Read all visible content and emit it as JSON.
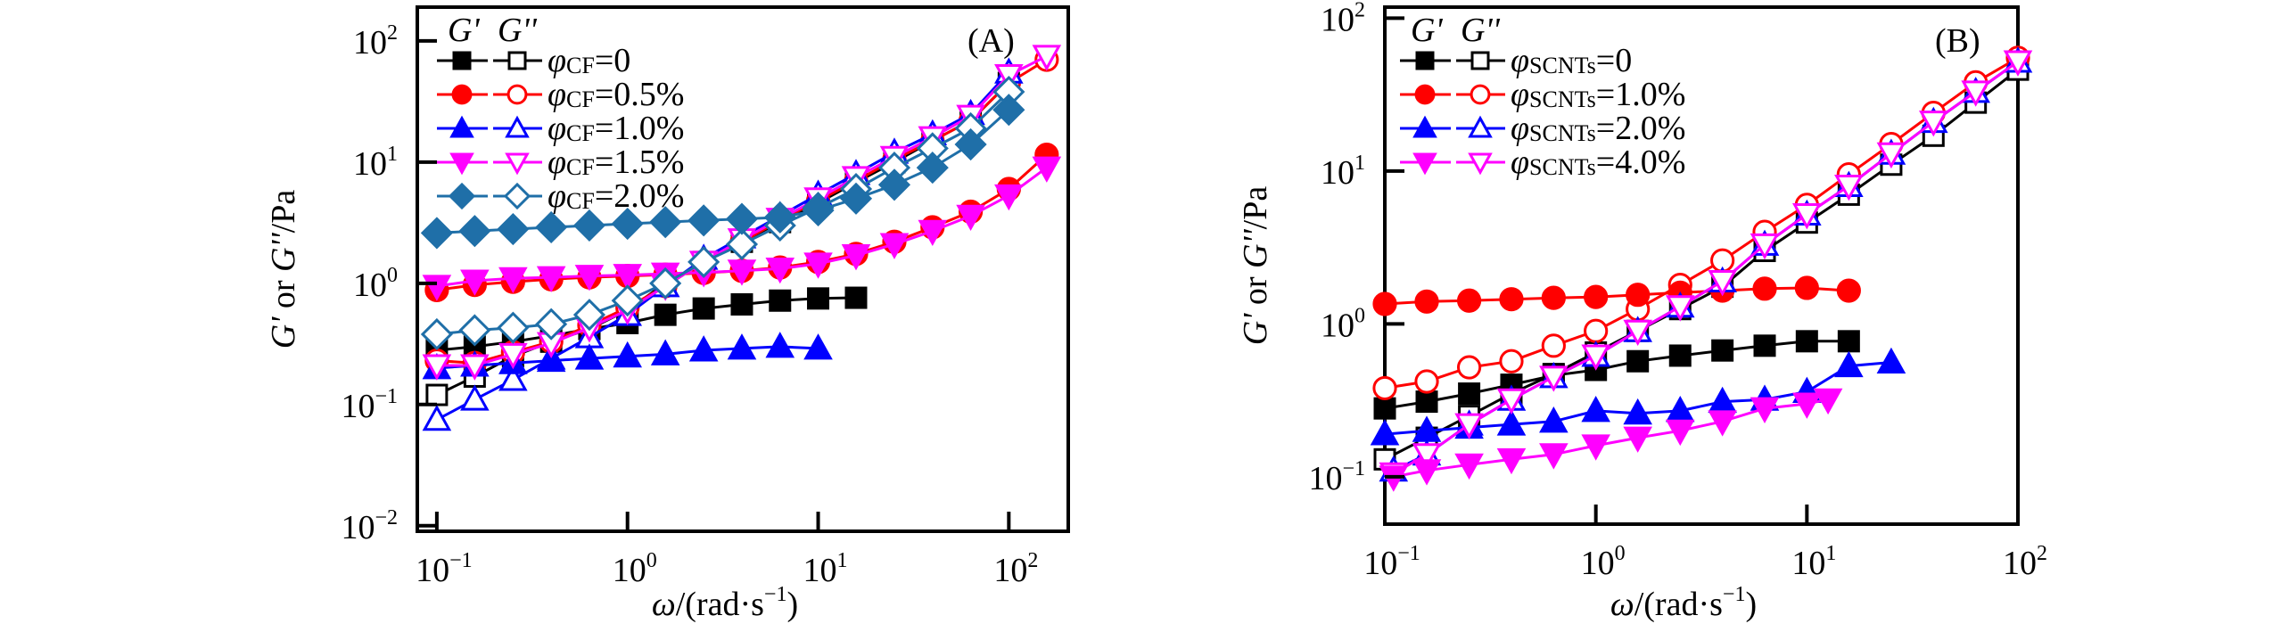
{
  "chart_data": [
    {
      "type": "line",
      "panel_label": "(A)",
      "title": "",
      "xscale": "log",
      "yscale": "log",
      "xlabel": "ω/(rad·s⁻¹)",
      "ylabel": "G' or G''/Pa",
      "xlabel_parts": {
        "main": "ω/(rad·s",
        "sup": "−1",
        "end": ")"
      },
      "ylabel_parts": {
        "g1": "G'",
        "or": " or ",
        "g2": "G''",
        "unit": "/Pa"
      },
      "xlim": [
        0.079,
        205
      ],
      "ylim": [
        0.009,
        190
      ],
      "xticks": [
        {
          "base": "10",
          "exp": "−1",
          "value": 0.1
        },
        {
          "base": "10",
          "exp": "0",
          "value": 1
        },
        {
          "base": "10",
          "exp": "1",
          "value": 10
        },
        {
          "base": "10",
          "exp": "2",
          "value": 100
        }
      ],
      "yticks": [
        {
          "base": "10",
          "exp": "−2",
          "value": 0.01
        },
        {
          "base": "10",
          "exp": "−1",
          "value": 0.1
        },
        {
          "base": "10",
          "exp": "0",
          "value": 1
        },
        {
          "base": "10",
          "exp": "1",
          "value": 10
        },
        {
          "base": "10",
          "exp": "2",
          "value": 100
        }
      ],
      "grid": false,
      "legend": {
        "placement": "top-left",
        "header_gp": "G'",
        "header_gpp": "G''",
        "symbol": "φ",
        "subscript": "CF"
      },
      "series": [
        {
          "name": "φCF=0",
          "label_value": "=0",
          "color": "#000000",
          "marker": "square",
          "gp": {
            "x": [
              0.1,
              0.158,
              0.251,
              0.398,
              0.631,
              1,
              1.58,
              2.51,
              3.98,
              6.31,
              10,
              15.8
            ],
            "y": [
              0.28,
              0.3,
              0.33,
              0.37,
              0.42,
              0.47,
              0.55,
              0.62,
              0.67,
              0.72,
              0.75,
              0.76
            ]
          },
          "gpp": {
            "x": [
              0.1,
              0.158,
              0.251,
              0.398,
              0.631,
              1,
              1.58,
              2.51,
              3.98,
              6.31,
              10,
              15.8,
              25.1,
              39.8,
              63.1,
              100
            ],
            "y": [
              0.12,
              0.17,
              0.25,
              0.33,
              0.42,
              0.6,
              1.0,
              1.5,
              2.2,
              3.2,
              4.6,
              6.8,
              10,
              15,
              22,
              45
            ]
          }
        },
        {
          "name": "φCF=0.5%",
          "label_value": "=0.5%",
          "color": "#ff0000",
          "marker": "circle",
          "gp": {
            "x": [
              0.1,
              0.158,
              0.251,
              0.398,
              0.631,
              1,
              1.58,
              2.51,
              3.98,
              6.31,
              10,
              15.8,
              25.1,
              39.8,
              63.1,
              100,
              158
            ],
            "y": [
              0.88,
              0.97,
              1.03,
              1.08,
              1.12,
              1.15,
              1.18,
              1.22,
              1.27,
              1.35,
              1.5,
              1.75,
              2.2,
              2.9,
              3.9,
              6.0,
              11.5
            ]
          },
          "gpp": {
            "x": [
              0.1,
              0.158,
              0.251,
              0.398,
              0.631,
              1,
              1.58,
              2.51,
              3.98,
              6.31,
              10,
              15.8,
              25.1,
              39.8,
              63.1,
              100,
              158
            ],
            "y": [
              0.23,
              0.22,
              0.27,
              0.33,
              0.45,
              0.63,
              0.95,
              1.5,
              2.2,
              3.3,
              4.8,
              7,
              10.5,
              15,
              22,
              45,
              70
            ]
          }
        },
        {
          "name": "φCF=1.0%",
          "label_value": "=1.0%",
          "color": "#0000ff",
          "marker": "triangle-up",
          "gp": {
            "x": [
              0.1,
              0.158,
              0.251,
              0.398,
              0.631,
              1,
              1.58,
              2.51,
              3.98,
              6.31,
              10
            ],
            "y": [
              0.2,
              0.21,
              0.22,
              0.23,
              0.24,
              0.25,
              0.26,
              0.28,
              0.29,
              0.3,
              0.29
            ]
          },
          "gpp": {
            "x": [
              0.1,
              0.158,
              0.251,
              0.398,
              0.631,
              1,
              1.58,
              2.51,
              3.98,
              6.31,
              10,
              15.8,
              25.1,
              39.8,
              63.1,
              100
            ],
            "y": [
              0.075,
              0.11,
              0.16,
              0.24,
              0.36,
              0.55,
              0.95,
              1.6,
              2.4,
              3.6,
              5.4,
              8,
              12,
              17,
              25,
              55
            ]
          }
        },
        {
          "name": "φCF=1.5%",
          "label_value": "=1.5%",
          "color": "#ff00ff",
          "marker": "triangle-down",
          "gp": {
            "x": [
              0.1,
              0.158,
              0.251,
              0.398,
              0.631,
              1,
              1.58,
              2.51,
              3.98,
              6.31,
              10,
              15.8,
              25.1,
              39.8,
              63.1,
              100,
              158
            ],
            "y": [
              0.95,
              1.05,
              1.1,
              1.12,
              1.15,
              1.17,
              1.2,
              1.23,
              1.27,
              1.32,
              1.45,
              1.7,
              2.1,
              2.7,
              3.6,
              5.3,
              9.0
            ]
          },
          "gpp": {
            "x": [
              0.1,
              0.158,
              0.251,
              0.398,
              0.631,
              1,
              1.58,
              2.51,
              3.98,
              6.31,
              10,
              15.8,
              25.1,
              39.8,
              63.1,
              100,
              158
            ],
            "y": [
              0.21,
              0.21,
              0.26,
              0.32,
              0.43,
              0.6,
              0.95,
              1.5,
              2.3,
              3.4,
              5,
              7.5,
              11,
              16,
              24,
              52,
              75
            ]
          }
        },
        {
          "name": "φCF=2.0%",
          "label_value": "=2.0%",
          "color": "#1f6fa8",
          "marker": "diamond",
          "gp": {
            "x": [
              0.1,
              0.158,
              0.251,
              0.398,
              0.631,
              1,
              1.58,
              2.51,
              3.98,
              6.31,
              10,
              15.8,
              25.1,
              39.8,
              63.1,
              100
            ],
            "y": [
              2.6,
              2.7,
              2.8,
              2.9,
              3.0,
              3.1,
              3.2,
              3.3,
              3.4,
              3.5,
              4.0,
              5.0,
              6.5,
              9,
              14,
              27
            ]
          },
          "gpp": {
            "x": [
              0.1,
              0.158,
              0.251,
              0.398,
              0.631,
              1,
              1.58,
              2.51,
              3.98,
              6.31,
              10,
              15.8,
              25.1,
              39.8,
              63.1,
              100
            ],
            "y": [
              0.38,
              0.41,
              0.43,
              0.46,
              0.55,
              0.72,
              1.0,
              1.5,
              2.1,
              3.0,
              4.2,
              6,
              9,
              13,
              19,
              38
            ]
          }
        }
      ]
    },
    {
      "type": "line",
      "panel_label": "(B)",
      "title": "",
      "xscale": "log",
      "yscale": "log",
      "xlabel": "ω/(rad·s⁻¹)",
      "ylabel": "G' or G''/Pa",
      "xlabel_parts": {
        "main": "ω/(rad·s",
        "sup": "−1",
        "end": ")"
      },
      "ylabel_parts": {
        "g1": "G'",
        "or": " or ",
        "g2": "G''",
        "unit": "/Pa"
      },
      "xlim": [
        0.1,
        100
      ],
      "ylim": [
        0.049,
        118
      ],
      "xticks": [
        {
          "base": "10",
          "exp": "−1",
          "value": 0.1
        },
        {
          "base": "10",
          "exp": "0",
          "value": 1
        },
        {
          "base": "10",
          "exp": "1",
          "value": 10
        },
        {
          "base": "10",
          "exp": "2",
          "value": 100
        }
      ],
      "yticks": [
        {
          "base": "10",
          "exp": "−1",
          "value": 0.1
        },
        {
          "base": "10",
          "exp": "0",
          "value": 1
        },
        {
          "base": "10",
          "exp": "1",
          "value": 10
        },
        {
          "base": "10",
          "exp": "2",
          "value": 100
        }
      ],
      "grid": false,
      "legend": {
        "placement": "top-left",
        "header_gp": "G'",
        "header_gpp": "G''",
        "symbol": "φ",
        "subscript": "SCNTs"
      },
      "series": [
        {
          "name": "φSCNTs=0",
          "label_value": "=0",
          "color": "#000000",
          "marker": "square",
          "gp": {
            "x": [
              0.1,
              0.158,
              0.251,
              0.398,
              0.631,
              1,
              1.58,
              2.51,
              3.98,
              6.31,
              10,
              15.8
            ],
            "y": [
              0.28,
              0.31,
              0.35,
              0.4,
              0.46,
              0.5,
              0.57,
              0.62,
              0.67,
              0.72,
              0.77,
              0.77
            ]
          },
          "gpp": {
            "x": [
              0.1,
              0.158,
              0.251,
              0.398,
              0.631,
              1,
              1.58,
              2.51,
              3.98,
              6.31,
              10,
              15.8,
              25.1,
              39.8,
              63.1,
              100
            ],
            "y": [
              0.13,
              0.18,
              0.25,
              0.35,
              0.47,
              0.65,
              0.9,
              1.25,
              1.75,
              3.0,
              4.6,
              7.0,
              11,
              17,
              28,
              46
            ]
          }
        },
        {
          "name": "φSCNTs=1.0%",
          "label_value": "=1.0%",
          "color": "#ff0000",
          "marker": "circle",
          "gp": {
            "x": [
              0.1,
              0.158,
              0.251,
              0.398,
              0.631,
              1,
              1.58,
              2.51,
              3.98,
              6.31,
              10,
              15.8
            ],
            "y": [
              1.35,
              1.4,
              1.42,
              1.45,
              1.48,
              1.5,
              1.55,
              1.6,
              1.65,
              1.7,
              1.72,
              1.65
            ]
          },
          "gpp": {
            "x": [
              0.1,
              0.158,
              0.251,
              0.398,
              0.631,
              1,
              1.58,
              2.51,
              3.98,
              6.31,
              10,
              15.8,
              25.1,
              39.8,
              63.1,
              100
            ],
            "y": [
              0.38,
              0.42,
              0.52,
              0.57,
              0.72,
              0.9,
              1.25,
              1.8,
              2.6,
              4.0,
              6.0,
              9.5,
              15,
              24,
              38,
              55
            ]
          }
        },
        {
          "name": "φSCNTs=2.0%",
          "label_value": "=2.0%",
          "color": "#0000ff",
          "marker": "triangle-up",
          "gp": {
            "x": [
              0.1,
              0.158,
              0.251,
              0.398,
              0.631,
              1,
              1.58,
              2.51,
              3.98,
              6.31,
              10,
              15.8,
              25.1
            ],
            "y": [
              0.19,
              0.2,
              0.21,
              0.22,
              0.23,
              0.27,
              0.26,
              0.27,
              0.31,
              0.32,
              0.36,
              0.53,
              0.56
            ]
          },
          "gpp": {
            "x": [
              0.11,
              0.158,
              0.251,
              0.398,
              0.631,
              1,
              1.58,
              2.51,
              3.98,
              6.31,
              10,
              15.8,
              25.1,
              39.8,
              63.1,
              100
            ],
            "y": [
              0.11,
              0.14,
              0.22,
              0.32,
              0.45,
              0.62,
              0.9,
              1.3,
              1.9,
              3.3,
              5.2,
              8.0,
              13,
              21,
              33,
              52
            ]
          }
        },
        {
          "name": "φSCNTs=4.0%",
          "label_value": "=4.0%",
          "color": "#ff00ff",
          "marker": "triangle-down",
          "gp": {
            "x": [
              0.11,
              0.158,
              0.251,
              0.398,
              0.631,
              1,
              1.58,
              2.51,
              3.98,
              6.31,
              10,
              12.6
            ],
            "y": [
              0.1,
              0.11,
              0.12,
              0.13,
              0.14,
              0.16,
              0.18,
              0.2,
              0.23,
              0.28,
              0.3,
              0.32
            ]
          },
          "gpp": {
            "x": [
              0.11,
              0.158,
              0.251,
              0.398,
              0.631,
              1,
              1.58,
              2.51,
              3.98,
              6.31,
              10,
              15.8,
              25.1,
              39.8,
              63.1,
              100
            ],
            "y": [
              0.105,
              0.14,
              0.22,
              0.32,
              0.45,
              0.62,
              0.9,
              1.3,
              1.9,
              3.3,
              5.2,
              8.0,
              13,
              21,
              33,
              52
            ]
          }
        }
      ]
    }
  ]
}
